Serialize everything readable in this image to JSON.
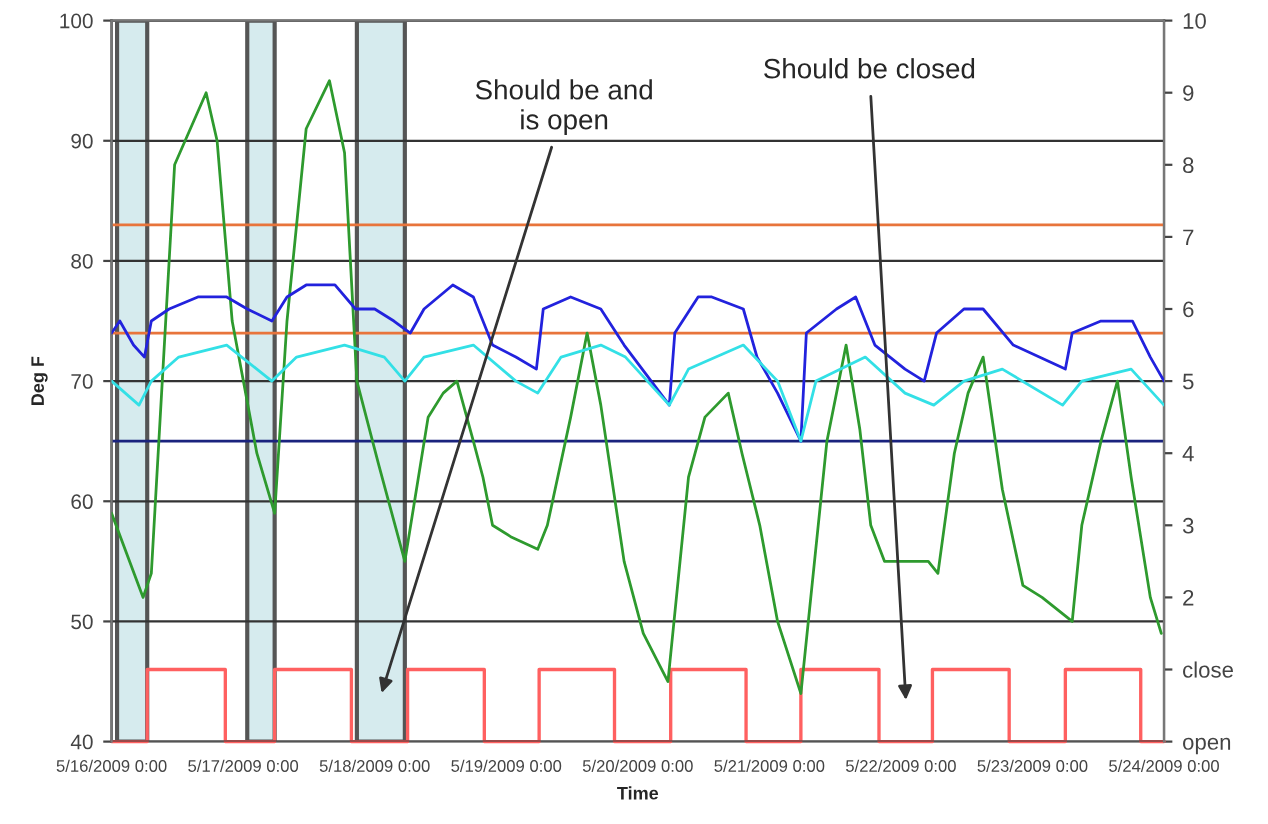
{
  "chart_data": {
    "type": "line",
    "xlabel": "Time",
    "ylabel": "Deg F",
    "xlim": [
      "2009-05-16T00:00",
      "2009-05-24T00:00"
    ],
    "xticks": [
      {
        "value": "2009-05-16",
        "label": "5/16/2009 0:00"
      },
      {
        "value": "2009-05-17",
        "label": "5/17/2009 0:00"
      },
      {
        "value": "2009-05-18",
        "label": "5/18/2009 0:00"
      },
      {
        "value": "2009-05-19",
        "label": "5/19/2009 0:00"
      },
      {
        "value": "2009-05-20",
        "label": "5/20/2009 0:00"
      },
      {
        "value": "2009-05-21",
        "label": "5/21/2009 0:00"
      },
      {
        "value": "2009-05-22",
        "label": "5/22/2009 0:00"
      },
      {
        "value": "2009-05-23",
        "label": "5/23/2009 0:00"
      },
      {
        "value": "2009-05-24",
        "label": "5/24/2009 0:00"
      }
    ],
    "ylim": [
      40,
      100
    ],
    "yticks": [
      40,
      50,
      60,
      70,
      80,
      90,
      100
    ],
    "y2lim": [
      0,
      10
    ],
    "y2ticks": [
      {
        "value": 0,
        "label": "open"
      },
      {
        "value": 1,
        "label": "close"
      },
      2,
      3,
      4,
      5,
      6,
      7,
      8,
      9,
      10
    ],
    "grid": "y",
    "legend": false,
    "series": [
      {
        "color": "#2e9a2e",
        "x": [
          "2009-05-16T00:00",
          "2009-05-16T05:45",
          "2009-05-16T07:15",
          "2009-05-16T11:30",
          "2009-05-16T17:15",
          "2009-05-16T19:15",
          "2009-05-16T22:00",
          "2009-05-17T02:30",
          "2009-05-17T05:45",
          "2009-05-17T08:00",
          "2009-05-17T11:30",
          "2009-05-17T15:45",
          "2009-05-17T18:30",
          "2009-05-17T20:45",
          "2009-05-18T00:45",
          "2009-05-18T05:30",
          "2009-05-18T09:45",
          "2009-05-18T12:30",
          "2009-05-18T15:00",
          "2009-05-18T18:00",
          "2009-05-18T19:45",
          "2009-05-18T21:30",
          "2009-05-19T01:00",
          "2009-05-19T05:45",
          "2009-05-19T07:30",
          "2009-05-19T11:45",
          "2009-05-19T14:45",
          "2009-05-19T17:15",
          "2009-05-19T21:30",
          "2009-05-20T01:00",
          "2009-05-20T05:30",
          "2009-05-20T09:15",
          "2009-05-20T12:15",
          "2009-05-20T16:30",
          "2009-05-20T19:00",
          "2009-05-20T22:15",
          "2009-05-21T01:30",
          "2009-05-21T05:45",
          "2009-05-21T10:30",
          "2009-05-21T14:00",
          "2009-05-21T16:30",
          "2009-05-21T18:30",
          "2009-05-21T21:00",
          "2009-05-22T00:45",
          "2009-05-22T05:00",
          "2009-05-22T06:45",
          "2009-05-22T09:45",
          "2009-05-22T12:15",
          "2009-05-22T15:00",
          "2009-05-22T18:30",
          "2009-05-22T22:15",
          "2009-05-23T01:45",
          "2009-05-23T07:15",
          "2009-05-23T09:00",
          "2009-05-23T12:30",
          "2009-05-23T15:30",
          "2009-05-23T18:00",
          "2009-05-23T21:30",
          "2009-05-23T23:30"
        ],
        "values": [
          59,
          52,
          54,
          88,
          94,
          90,
          75,
          64,
          59,
          75,
          91,
          95,
          89,
          70,
          63,
          55,
          67,
          69,
          70,
          65,
          62,
          58,
          57,
          56,
          58,
          67,
          74,
          68,
          55,
          49,
          45,
          62,
          67,
          69,
          64,
          58,
          50,
          44,
          65,
          73,
          66,
          58,
          55,
          55,
          55,
          54,
          64,
          69,
          72,
          61,
          53,
          52,
          50,
          58,
          65,
          70,
          62,
          52,
          49
        ]
      },
      {
        "color": "#2222dd",
        "x": [
          "2009-05-16T00:00",
          "2009-05-16T01:30",
          "2009-05-16T04:00",
          "2009-05-16T06:00",
          "2009-05-16T07:15",
          "2009-05-16T10:30",
          "2009-05-16T15:45",
          "2009-05-16T21:00",
          "2009-05-17T00:45",
          "2009-05-17T05:15",
          "2009-05-17T08:00",
          "2009-05-17T11:30",
          "2009-05-17T16:45",
          "2009-05-17T20:30",
          "2009-05-18T00:00",
          "2009-05-18T03:30",
          "2009-05-18T06:30",
          "2009-05-18T09:00",
          "2009-05-18T14:15",
          "2009-05-18T18:00",
          "2009-05-18T21:30",
          "2009-05-19T01:45",
          "2009-05-19T05:30",
          "2009-05-19T06:45",
          "2009-05-19T11:45",
          "2009-05-19T17:15",
          "2009-05-19T21:30",
          "2009-05-20T05:45",
          "2009-05-20T06:45",
          "2009-05-20T11:00",
          "2009-05-20T13:30",
          "2009-05-20T19:15",
          "2009-05-20T21:45",
          "2009-05-21T01:30",
          "2009-05-21T05:45",
          "2009-05-21T06:45",
          "2009-05-21T12:15",
          "2009-05-21T15:45",
          "2009-05-21T19:15",
          "2009-05-22T00:45",
          "2009-05-22T04:15",
          "2009-05-22T06:30",
          "2009-05-22T11:30",
          "2009-05-22T15:00",
          "2009-05-22T20:30",
          "2009-05-23T06:00",
          "2009-05-23T07:15",
          "2009-05-23T12:30",
          "2009-05-23T18:15",
          "2009-05-23T21:30",
          "2009-05-24T00:00"
        ],
        "values": [
          74,
          75,
          73,
          72,
          75,
          76,
          77,
          77,
          76,
          75,
          77,
          78,
          78,
          76,
          76,
          75,
          74,
          76,
          78,
          77,
          73,
          72,
          71,
          76,
          77,
          76,
          73,
          68,
          74,
          77,
          77,
          76,
          72,
          69,
          65,
          74,
          76,
          77,
          73,
          71,
          70,
          74,
          76,
          76,
          73,
          71,
          74,
          75,
          75,
          72,
          70
        ]
      },
      {
        "color": "#33e0e6",
        "x": [
          "2009-05-16T00:00",
          "2009-05-16T05:00",
          "2009-05-16T07:15",
          "2009-05-16T12:15",
          "2009-05-16T21:00",
          "2009-05-17T02:30",
          "2009-05-17T05:15",
          "2009-05-17T09:45",
          "2009-05-17T18:30",
          "2009-05-18T01:45",
          "2009-05-18T05:30",
          "2009-05-18T09:00",
          "2009-05-18T18:00",
          "2009-05-19T01:45",
          "2009-05-19T05:45",
          "2009-05-19T10:00",
          "2009-05-19T17:15",
          "2009-05-19T21:45",
          "2009-05-20T05:45",
          "2009-05-20T09:15",
          "2009-05-20T19:15",
          "2009-05-21T01:30",
          "2009-05-21T05:45",
          "2009-05-21T08:30",
          "2009-05-21T17:30",
          "2009-05-22T00:45",
          "2009-05-22T06:00",
          "2009-05-22T11:30",
          "2009-05-22T18:30",
          "2009-05-23T05:30",
          "2009-05-23T09:00",
          "2009-05-23T18:00",
          "2009-05-24T00:00"
        ],
        "values": [
          70,
          68,
          70,
          72,
          73,
          71,
          70,
          72,
          73,
          72,
          70,
          72,
          73,
          70,
          69,
          72,
          73,
          72,
          68,
          71,
          73,
          70,
          65,
          70,
          72,
          69,
          68,
          70,
          71,
          68,
          70,
          71,
          68
        ]
      },
      {
        "type": "step",
        "axis": "y2",
        "color": "#ff6060",
        "x": [
          "2009-05-16T00:00",
          "2009-05-16T06:30",
          "2009-05-16T20:45",
          "2009-05-17T05:45",
          "2009-05-17T19:45",
          "2009-05-18T06:00",
          "2009-05-18T20:00",
          "2009-05-19T06:00",
          "2009-05-19T19:45",
          "2009-05-20T06:00",
          "2009-05-20T19:45",
          "2009-05-21T05:45",
          "2009-05-21T20:00",
          "2009-05-22T05:45",
          "2009-05-22T19:45",
          "2009-05-23T06:00",
          "2009-05-23T19:45",
          "2009-05-24T00:00"
        ],
        "values": [
          0,
          1,
          0,
          1,
          0,
          1,
          0,
          1,
          0,
          1,
          0,
          1,
          0,
          1,
          0,
          1,
          0,
          0
        ]
      }
    ],
    "ref_lines": [
      {
        "axis": "y",
        "value": 83,
        "color": "#e8743b"
      },
      {
        "axis": "y",
        "value": 74,
        "color": "#e8743b"
      },
      {
        "axis": "y",
        "value": 65,
        "color": "#1a237e"
      }
    ],
    "bands": [
      {
        "axis": "x",
        "from": "2009-05-16T01:00",
        "to": "2009-05-16T06:30",
        "color": "#d6ebee"
      },
      {
        "axis": "x",
        "from": "2009-05-17T00:45",
        "to": "2009-05-17T05:45",
        "color": "#d6ebee"
      },
      {
        "axis": "x",
        "from": "2009-05-17T20:45",
        "to": "2009-05-18T05:30",
        "color": "#d6ebee"
      }
    ],
    "annotations": [
      "Should be and\nis open",
      "Should be closed"
    ]
  }
}
